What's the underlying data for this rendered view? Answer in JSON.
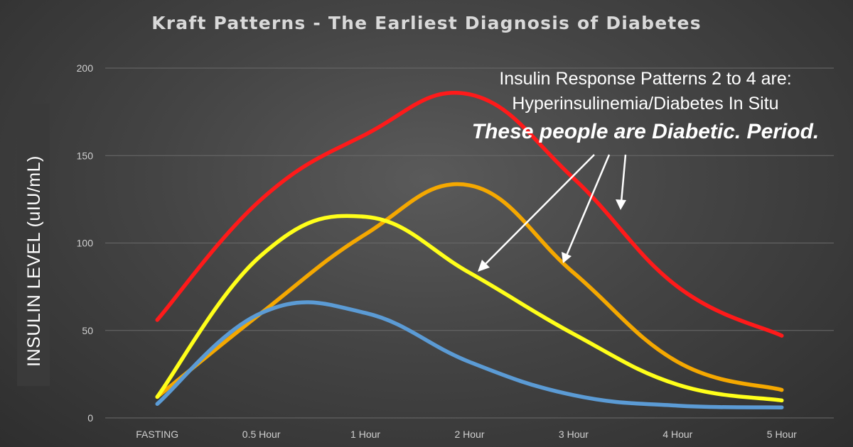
{
  "chart_data": {
    "type": "line",
    "title": "Kraft Patterns - The Earliest Diagnosis of Diabetes",
    "xlabel": "",
    "ylabel": "INSULIN LEVEL (uIU/mL)",
    "categories": [
      "FASTING",
      "0.5 Hour",
      "1 Hour",
      "2 Hour",
      "3 Hour",
      "4 Hour",
      "5 Hour"
    ],
    "y_ticks": [
      "0",
      "50",
      "100",
      "150",
      "200"
    ],
    "ylim": [
      0,
      200
    ],
    "grid": true,
    "smooth": true,
    "series": [
      {
        "color": "#ff1a1a",
        "values": [
          56,
          125,
          162,
          185,
          137,
          75,
          47
        ]
      },
      {
        "color": "#f5a800",
        "values": [
          12,
          60,
          105,
          133,
          83,
          32,
          16
        ]
      },
      {
        "color": "#ffff1a",
        "values": [
          12,
          93,
          115,
          83,
          48,
          19,
          10
        ]
      },
      {
        "color": "#5b9bd5",
        "values": [
          8,
          60,
          60,
          32,
          13,
          7,
          6
        ]
      }
    ],
    "annotation": {
      "line1": "Insulin Response Patterns 2 to 4 are:",
      "line2": "Hyperinsulinemia/Diabetes In Situ",
      "line3": "These people are Diabetic. Period."
    }
  }
}
